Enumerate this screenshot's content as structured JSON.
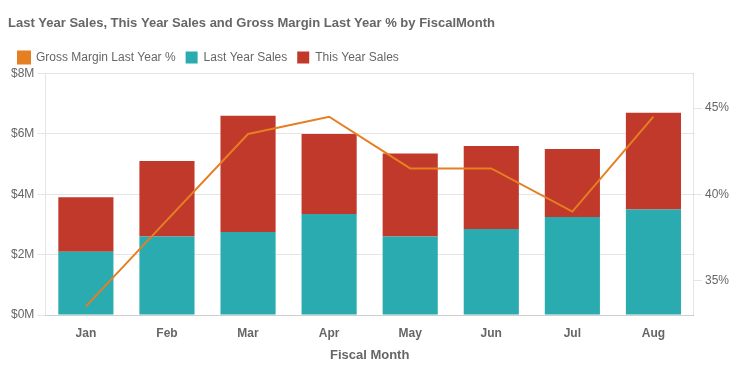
{
  "chart_data": {
    "type": "bar",
    "title": "Last Year Sales, This Year Sales and Gross Margin Last Year % by FiscalMonth",
    "xlabel": "Fiscal Month",
    "categories": [
      "Jan",
      "Feb",
      "Mar",
      "Apr",
      "May",
      "Jun",
      "Jul",
      "Aug"
    ],
    "series": [
      {
        "name": "Last Year Sales",
        "type": "bar",
        "color": "#29ABB0",
        "values": [
          2.1,
          2.6,
          2.75,
          3.35,
          2.6,
          2.85,
          3.25,
          3.5
        ]
      },
      {
        "name": "This Year Sales",
        "type": "bar",
        "color": "#C0392B",
        "values": [
          1.8,
          2.5,
          3.85,
          2.65,
          2.75,
          2.75,
          2.25,
          3.2
        ]
      },
      {
        "name": "Gross Margin Last Year %",
        "type": "line",
        "axis": "y2",
        "color": "#E67E22",
        "values": [
          33.5,
          38.5,
          43.5,
          44.5,
          41.5,
          41.5,
          39.0,
          44.5
        ]
      }
    ],
    "stacked": true,
    "ylim": [
      0,
      8
    ],
    "yticks": [
      {
        "value": 0,
        "label": "$0M"
      },
      {
        "value": 2,
        "label": "$2M"
      },
      {
        "value": 4,
        "label": "$4M"
      },
      {
        "value": 6,
        "label": "$6M"
      },
      {
        "value": 8,
        "label": "$8M"
      }
    ],
    "y2lim": [
      33,
      47
    ],
    "y2ticks": [
      {
        "value": 35,
        "label": "35%"
      },
      {
        "value": 40,
        "label": "40%"
      },
      {
        "value": 45,
        "label": "45%"
      }
    ],
    "grid": true,
    "legend": "top"
  }
}
